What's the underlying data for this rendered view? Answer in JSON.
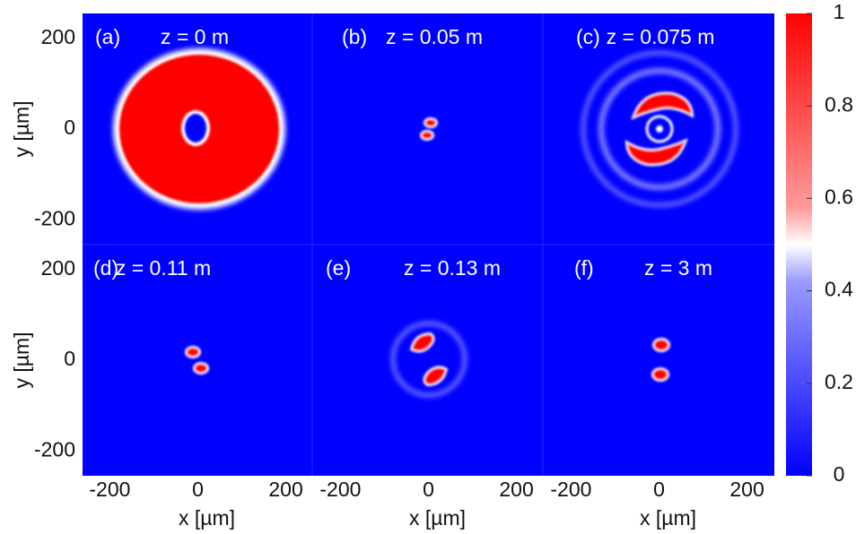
{
  "chart_data": {
    "type": "heatmap",
    "xlabel": "x [µm]",
    "ylabel": "y [µm]",
    "xlim": [
      -262,
      262
    ],
    "ylim": [
      -255,
      255
    ],
    "xticks": [
      -200,
      0,
      200
    ],
    "yticks": [
      -200,
      0,
      200
    ],
    "colorbar": {
      "lim": [
        0,
        1
      ],
      "ticks": [
        0,
        0.2,
        0.4,
        0.6,
        0.8,
        1
      ]
    },
    "panels": [
      {
        "label": "(a)",
        "title": "z = 0 m"
      },
      {
        "label": "(b)",
        "title": "z = 0.05 m"
      },
      {
        "label": "(c)",
        "title": "z = 0.075 m"
      },
      {
        "label": "(d)",
        "title": "z = 0.11 m"
      },
      {
        "label": "(e)",
        "title": "z = 0.13 m"
      },
      {
        "label": "(f)",
        "title": "z = 3 m"
      }
    ]
  }
}
